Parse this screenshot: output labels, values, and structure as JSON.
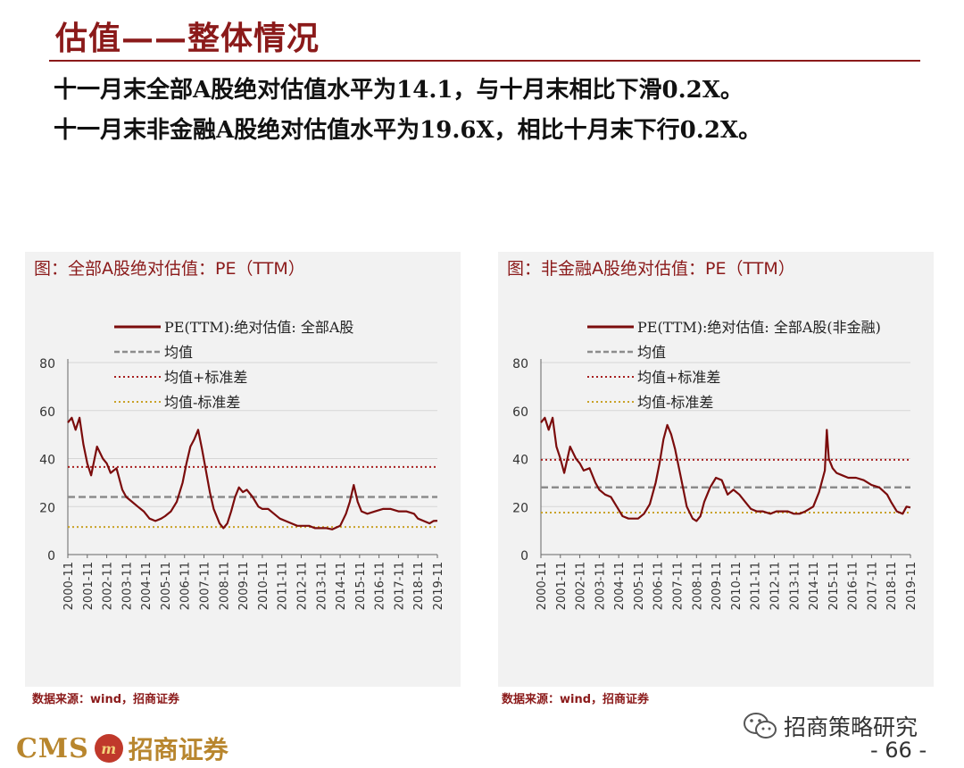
{
  "page": {
    "title": "估值——整体情况",
    "bullets": [
      "十一月末全部A股绝对估值水平为14.1，与十月末相比下滑0.2X。",
      "十一月末非金融A股绝对估值水平为19.6X，相比十月末下行0.2X。"
    ],
    "source_left": "数据来源：wind，招商证券",
    "source_right": "数据来源：wind，招商证券",
    "logo_cms": "CMS",
    "logo_emblem": "m",
    "logo_cn": "招商证券",
    "wechat_label": "招商策略研究",
    "page_number": "- 66 -"
  },
  "colors": {
    "brand_red": "#8b1a1a",
    "series_line": "#7b0c0c",
    "mean_line": "#8c8c8c",
    "upper_band": "#a82020",
    "lower_band": "#c9a227",
    "panel_bg": "#f2f2f2",
    "grid": "#d6d6d6"
  },
  "chart_data": [
    {
      "type": "line",
      "title": "图：全部A股绝对估值：PE（TTM）",
      "series_name": "PE(TTM):绝对估值: 全部A股",
      "legend": [
        "PE(TTM):绝对估值: 全部A股",
        "均值",
        "均值+标准差",
        "均值-标准差"
      ],
      "legend_position": "top-center",
      "grid": true,
      "ylim": [
        0,
        80
      ],
      "yticks": [
        0,
        20,
        40,
        60,
        80
      ],
      "x_tick_labels": [
        "2000-11",
        "2001-11",
        "2002-11",
        "2003-11",
        "2004-11",
        "2005-11",
        "2006-11",
        "2007-11",
        "2008-11",
        "2009-11",
        "2010-11",
        "2011-11",
        "2012-11",
        "2013-11",
        "2014-11",
        "2015-11",
        "2016-11",
        "2017-11",
        "2018-11",
        "2019-11"
      ],
      "mean": 24,
      "mean_plus_std": 36.5,
      "mean_minus_std": 11.5,
      "x": [
        0,
        0.2,
        0.4,
        0.6,
        0.8,
        1.0,
        1.2,
        1.5,
        1.8,
        2.0,
        2.2,
        2.5,
        2.8,
        3.0,
        3.3,
        3.6,
        3.9,
        4.2,
        4.5,
        4.8,
        5.0,
        5.3,
        5.6,
        5.9,
        6.1,
        6.3,
        6.5,
        6.7,
        6.9,
        7.1,
        7.3,
        7.5,
        7.8,
        8.0,
        8.2,
        8.4,
        8.6,
        8.8,
        9.0,
        9.2,
        9.5,
        9.8,
        10.0,
        10.3,
        10.6,
        10.9,
        11.2,
        11.5,
        11.8,
        12.1,
        12.4,
        12.7,
        13.0,
        13.3,
        13.6,
        14.0,
        14.3,
        14.5,
        14.7,
        14.9,
        15.1,
        15.4,
        15.8,
        16.2,
        16.6,
        17.0,
        17.4,
        17.8,
        18.0,
        18.3,
        18.6,
        18.8,
        19.0
      ],
      "values": [
        55,
        57,
        52,
        57,
        46,
        38,
        33,
        45,
        40,
        38,
        34,
        36,
        27,
        24,
        22,
        20,
        18,
        15,
        14,
        15,
        16,
        18,
        22,
        30,
        38,
        45,
        48,
        52,
        44,
        35,
        26,
        19,
        13,
        11,
        13,
        18,
        24,
        28,
        26,
        27,
        24,
        20,
        19,
        19,
        17,
        15,
        14,
        13,
        12,
        12,
        12,
        11,
        11,
        11,
        10.5,
        12,
        17,
        22,
        29,
        22,
        18,
        17,
        18,
        19,
        19,
        18,
        18,
        17,
        15,
        14,
        13,
        14,
        14.1
      ]
    },
    {
      "type": "line",
      "title": "图：非金融A股绝对估值：PE（TTM）",
      "series_name": "PE(TTM):绝对估值: 全部A股(非金融)",
      "legend": [
        "PE(TTM):绝对估值: 全部A股(非金融)",
        "均值",
        "均值+标准差",
        "均值-标准差"
      ],
      "legend_position": "top-center",
      "grid": true,
      "ylim": [
        0,
        80
      ],
      "yticks": [
        0,
        20,
        40,
        60,
        80
      ],
      "x_tick_labels": [
        "2000-11",
        "2001-11",
        "2002-11",
        "2003-11",
        "2004-11",
        "2005-11",
        "2006-11",
        "2007-11",
        "2008-11",
        "2009-11",
        "2010-11",
        "2011-11",
        "2012-11",
        "2013-11",
        "2014-11",
        "2015-11",
        "2016-11",
        "2017-11",
        "2018-11",
        "2019-11"
      ],
      "mean": 28,
      "mean_plus_std": 39.5,
      "mean_minus_std": 17.5,
      "x": [
        0,
        0.2,
        0.4,
        0.6,
        0.8,
        1.0,
        1.2,
        1.5,
        1.8,
        2.0,
        2.2,
        2.5,
        2.8,
        3.0,
        3.3,
        3.6,
        3.9,
        4.2,
        4.5,
        4.8,
        5.0,
        5.3,
        5.6,
        5.9,
        6.1,
        6.3,
        6.5,
        6.7,
        6.9,
        7.1,
        7.3,
        7.5,
        7.8,
        8.0,
        8.2,
        8.4,
        8.7,
        9.0,
        9.3,
        9.6,
        9.9,
        10.2,
        10.5,
        10.8,
        11.1,
        11.4,
        11.8,
        12.1,
        12.4,
        12.7,
        13.0,
        13.3,
        13.6,
        14.0,
        14.3,
        14.6,
        14.7,
        14.8,
        15.0,
        15.2,
        15.5,
        15.8,
        16.2,
        16.6,
        17.0,
        17.4,
        17.8,
        18.0,
        18.3,
        18.6,
        18.8,
        19.0
      ],
      "values": [
        55,
        57,
        52,
        57,
        45,
        40,
        34,
        45,
        40,
        38,
        35,
        36,
        30,
        27,
        25,
        24,
        20,
        16,
        15,
        15,
        15,
        17,
        21,
        30,
        38,
        48,
        54,
        50,
        44,
        36,
        28,
        20,
        15,
        14,
        16,
        22,
        28,
        32,
        31,
        25,
        27,
        25,
        22,
        19,
        18,
        18,
        17,
        18,
        18,
        18,
        17,
        17,
        18,
        20,
        26,
        35,
        52,
        40,
        36,
        34,
        33,
        32,
        32,
        31,
        29,
        28,
        25,
        22,
        18,
        17,
        20,
        19.6
      ]
    }
  ]
}
